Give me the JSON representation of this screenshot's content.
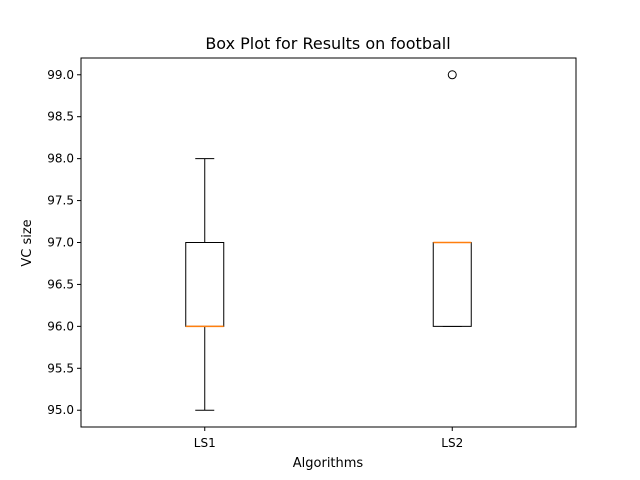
{
  "chart_data": {
    "type": "box",
    "title": "Box Plot for Results on football",
    "xlabel": "Algorithms",
    "ylabel": "VC size",
    "ylim": [
      94.8,
      99.2
    ],
    "yticks": [
      "95.0",
      "95.5",
      "96.0",
      "96.5",
      "97.0",
      "97.5",
      "98.0",
      "98.5",
      "99.0"
    ],
    "grid": false,
    "categories": [
      "LS1",
      "LS2"
    ],
    "boxes": [
      {
        "name": "LS1",
        "whisker_low": 95,
        "q1": 96,
        "median": 96,
        "q3": 97,
        "whisker_high": 98,
        "outliers": []
      },
      {
        "name": "LS2",
        "whisker_low": 96,
        "q1": 96,
        "median": 97,
        "q3": 97,
        "whisker_high": 97,
        "outliers": [
          99
        ]
      }
    ],
    "colors": {
      "box": "#000000",
      "median": "#ff7f0e",
      "outlier": "#000000"
    }
  }
}
